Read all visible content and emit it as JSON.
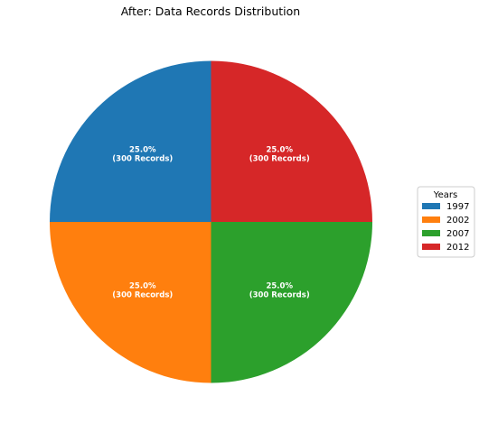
{
  "chart_data": {
    "type": "pie",
    "title": "After: Data Records Distribution",
    "categories": [
      "1997",
      "2002",
      "2007",
      "2012"
    ],
    "values": [
      300,
      300,
      300,
      300
    ],
    "percent_labels": [
      "25.0%",
      "25.0%",
      "25.0%",
      "25.0%"
    ],
    "record_labels": [
      "(300 Records)",
      "(300 Records)",
      "(300 Records)",
      "(300 Records)"
    ],
    "colors": [
      "#1f77b4",
      "#ff7f0e",
      "#2ca02c",
      "#d62728"
    ],
    "start_angle_deg": 90,
    "direction": "counterclockwise",
    "legend": {
      "title": "Years",
      "placement": "center-right"
    }
  }
}
